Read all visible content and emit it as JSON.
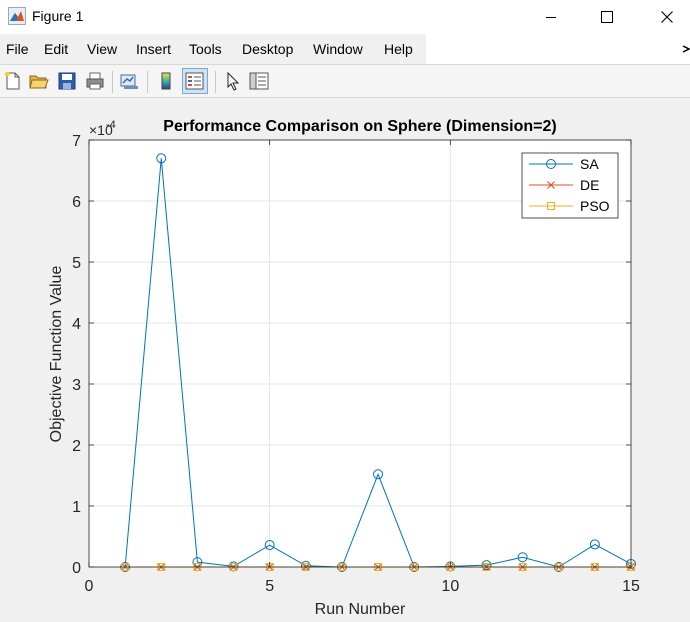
{
  "window": {
    "title": "Figure 1"
  },
  "menu": [
    "File",
    "Edit",
    "View",
    "Insert",
    "Tools",
    "Desktop",
    "Window",
    "Help"
  ],
  "toolbar_icons": [
    "new-figure-icon",
    "open-file-icon",
    "save-icon",
    "print-icon",
    "link-plot-icon",
    "insert-colorbar-icon",
    "insert-legend-icon",
    "edit-plot-icon",
    "property-inspector-icon"
  ],
  "chart_data": {
    "type": "line",
    "title": "Performance Comparison on Sphere (Dimension=2)",
    "xlabel": "Run Number",
    "ylabel": "Objective Function Value",
    "y_exponent_label": "×10",
    "y_exponent": "-4",
    "xlim": [
      0,
      15
    ],
    "ylim": [
      0,
      7
    ],
    "xticks": [
      "0",
      "5",
      "10",
      "15"
    ],
    "yticks": [
      "0",
      "1",
      "2",
      "3",
      "4",
      "5",
      "6",
      "7"
    ],
    "grid": true,
    "legend_position": "top-right",
    "x": [
      1,
      2,
      3,
      4,
      5,
      6,
      7,
      8,
      9,
      10,
      11,
      12,
      13,
      14,
      15
    ],
    "series": [
      {
        "name": "SA",
        "color": "#0072BD",
        "marker": "circle",
        "values": [
          0.0,
          6.7,
          0.08,
          0.01,
          0.36,
          0.02,
          0.0,
          1.52,
          0.0,
          0.01,
          0.03,
          0.16,
          0.0,
          0.37,
          0.05
        ]
      },
      {
        "name": "DE",
        "color": "#D95319",
        "marker": "x",
        "values": [
          0,
          0,
          0,
          0,
          0,
          0,
          0,
          0,
          0,
          0,
          0,
          0,
          0,
          0,
          0
        ]
      },
      {
        "name": "PSO",
        "color": "#EDB120",
        "marker": "square",
        "values": [
          0,
          0,
          0,
          0,
          0,
          0,
          0,
          0,
          0,
          0,
          0,
          0,
          0,
          0,
          0
        ]
      }
    ]
  }
}
